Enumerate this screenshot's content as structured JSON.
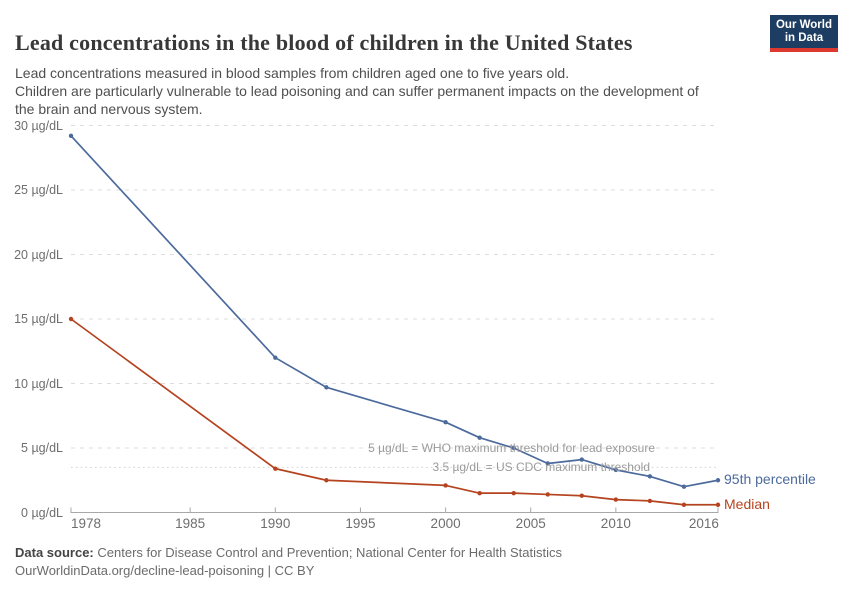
{
  "header": {
    "title": "Lead concentrations in the blood of children in the United States",
    "subtitle": "Lead concentrations measured in blood samples from children aged one to five years old.\nChildren are particularly vulnerable to lead poisoning and can suffer permanent impacts on the development of\nthe brain and nervous system.",
    "logo": {
      "line1": "Our World",
      "line2": "in Data",
      "bg_color": "#1D3D63",
      "bar_color": "#DE392F"
    }
  },
  "chart_data": {
    "type": "line",
    "title": "Lead concentrations in the blood of children in the United States",
    "xlabel": "",
    "ylabel": "µg/dL",
    "xlim": [
      1978,
      2016
    ],
    "ylim": [
      0,
      30
    ],
    "grid": "horizontal-dashed",
    "legend_position": "line-end-labels",
    "y_ticks": [
      {
        "value": 0,
        "label": "0 µg/dL"
      },
      {
        "value": 5,
        "label": "5 µg/dL"
      },
      {
        "value": 10,
        "label": "10 µg/dL"
      },
      {
        "value": 15,
        "label": "15 µg/dL"
      },
      {
        "value": 20,
        "label": "20 µg/dL"
      },
      {
        "value": 25,
        "label": "25 µg/dL"
      },
      {
        "value": 30,
        "label": "30 µg/dL"
      }
    ],
    "x_ticks": [
      {
        "value": 1978,
        "label": "1978",
        "align": "left"
      },
      {
        "value": 1985,
        "label": "1985",
        "align": "center"
      },
      {
        "value": 1990,
        "label": "1990",
        "align": "center"
      },
      {
        "value": 1995,
        "label": "1995",
        "align": "center"
      },
      {
        "value": 2000,
        "label": "2000",
        "align": "center"
      },
      {
        "value": 2005,
        "label": "2005",
        "align": "center"
      },
      {
        "value": 2010,
        "label": "2010",
        "align": "center"
      },
      {
        "value": 2016,
        "label": "2016",
        "align": "right"
      }
    ],
    "series": [
      {
        "name": "95th percentile",
        "color": "#4C6A9C",
        "years": [
          1978,
          1990,
          1993,
          2000,
          2002,
          2004,
          2006,
          2008,
          2010,
          2012,
          2014,
          2016
        ],
        "values": [
          29.2,
          12.0,
          9.7,
          7.0,
          5.8,
          5.0,
          3.8,
          4.1,
          3.3,
          2.8,
          2.0,
          2.5
        ]
      },
      {
        "name": "Median",
        "color": "#B5431F",
        "years": [
          1978,
          1990,
          1993,
          2000,
          2002,
          2004,
          2006,
          2008,
          2010,
          2012,
          2014,
          2016
        ],
        "values": [
          15.0,
          3.4,
          2.5,
          2.1,
          1.5,
          1.5,
          1.4,
          1.3,
          1.0,
          0.9,
          0.6,
          0.6
        ]
      }
    ],
    "thresholds": [
      {
        "value": 5,
        "label": "5 µg/dL = WHO maximum threshold for lead exposure",
        "line": "gridline"
      },
      {
        "value": 3.5,
        "label": "3.5 µg/dL = US CDC maximum threshold",
        "line": "dotted"
      }
    ]
  },
  "footer": {
    "source_label": "Data source:",
    "source_text": "Centers for Disease Control and Prevention; National Center for Health Statistics",
    "link_text": "OurWorldinData.org/decline-lead-poisoning | CC BY"
  }
}
